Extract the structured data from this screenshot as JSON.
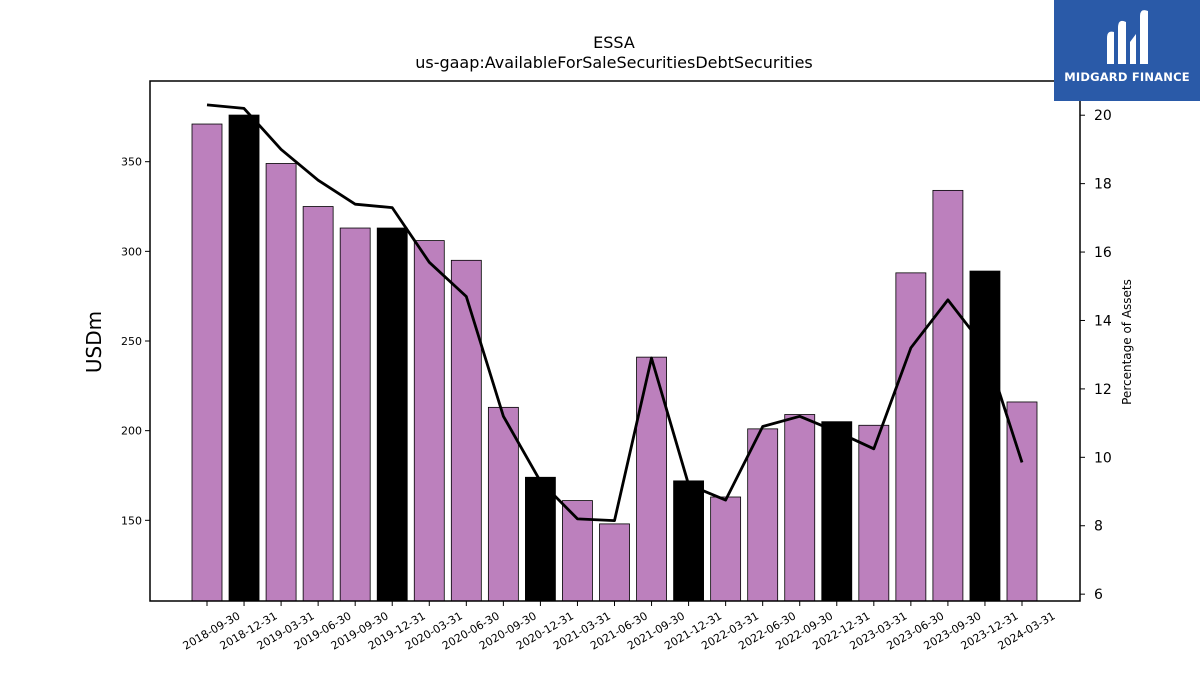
{
  "brand": {
    "name": "MIDGARD FINANCE",
    "bg_color": "#2a5aa8",
    "icon": "midgard-m-logo-icon"
  },
  "chart_data": {
    "type": "bar",
    "title": "ESSA",
    "subtitle": "us-gaap:AvailableForSaleSecuritiesDebtSecurities",
    "ylabel": "USDm",
    "ylabel_right": "Percentage of Assets",
    "ylim": [
      105,
      395
    ],
    "ylim_right": [
      5.8,
      21.0
    ],
    "yticks": [
      150,
      200,
      250,
      300,
      350
    ],
    "yticks_right": [
      6,
      8,
      10,
      12,
      14,
      16,
      18,
      20
    ],
    "grid": false,
    "colors": {
      "bar_quarter": "#bc80bd",
      "bar_year_end": "#000000",
      "line": "#000000"
    },
    "categories": [
      "2018-09-30",
      "2018-12-31",
      "2019-03-31",
      "2019-06-30",
      "2019-09-30",
      "2019-12-31",
      "2020-03-31",
      "2020-06-30",
      "2020-09-30",
      "2020-12-31",
      "2021-03-31",
      "2021-06-30",
      "2021-09-30",
      "2021-12-31",
      "2022-03-31",
      "2022-06-30",
      "2022-09-30",
      "2022-12-31",
      "2023-03-31",
      "2023-06-30",
      "2023-09-30",
      "2023-12-31",
      "2024-03-31"
    ],
    "series": [
      {
        "type": "bar",
        "values": [
          371,
          376,
          349,
          325,
          313,
          313,
          306,
          295,
          213,
          174,
          161,
          148,
          241,
          172,
          163,
          201,
          209,
          205,
          203,
          288,
          334,
          289,
          216
        ]
      },
      {
        "type": "line",
        "axis": "right",
        "values": [
          20.3,
          20.2,
          19.0,
          18.1,
          17.4,
          17.3,
          15.7,
          14.7,
          11.2,
          9.3,
          8.2,
          8.15,
          12.9,
          9.2,
          8.75,
          10.9,
          11.2,
          10.75,
          10.25,
          13.2,
          14.6,
          13.2,
          9.85
        ]
      }
    ],
    "year_end_categories": [
      "2018-12-31",
      "2019-12-31",
      "2020-12-31",
      "2021-12-31",
      "2023-12-31"
    ],
    "highlighted_bars": [
      1,
      5,
      9,
      13,
      17,
      21
    ]
  }
}
